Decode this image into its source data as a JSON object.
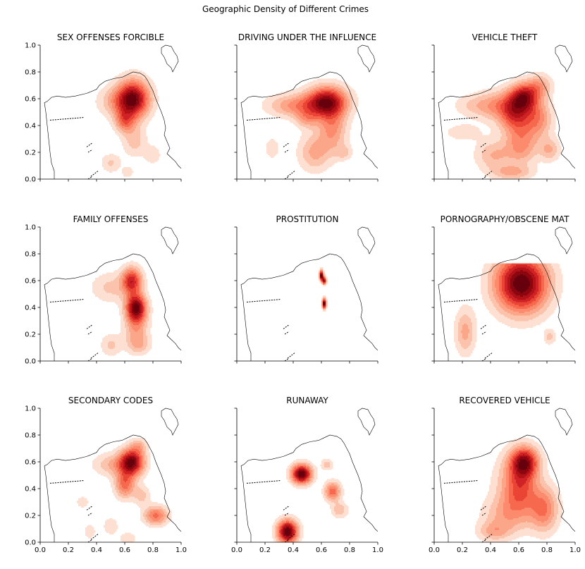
{
  "title": "Geographic Density of Different Crimes",
  "colors": {
    "palette": [
      "#fde0d2",
      "#fcc3ac",
      "#fca689",
      "#fb8b6c",
      "#f6694f",
      "#ea4534",
      "#cf2226",
      "#b01218",
      "#8c0610",
      "#67000d"
    ],
    "outline": "#000000"
  },
  "chart_data": {
    "type": "heatmap",
    "grid": {
      "rows": 3,
      "cols": 3
    },
    "xlim": [
      0,
      1
    ],
    "ylim": [
      0,
      1
    ],
    "xticks": [
      "0.0",
      "0.2",
      "0.4",
      "0.6",
      "0.8",
      "1.0"
    ],
    "yticks": [
      "0.0",
      "0.2",
      "0.4",
      "0.6",
      "0.8",
      "1.0"
    ],
    "panels": [
      {
        "title": "SEX OFFENSES FORCIBLE",
        "blobs": [
          [
            0.66,
            0.6,
            0.08,
            0.1,
            1.0
          ],
          [
            0.6,
            0.43,
            0.05,
            0.06,
            0.45
          ],
          [
            0.55,
            0.58,
            0.1,
            0.08,
            0.3
          ],
          [
            0.5,
            0.12,
            0.05,
            0.05,
            0.22
          ],
          [
            0.8,
            0.18,
            0.04,
            0.05,
            0.18
          ],
          [
            0.62,
            0.05,
            0.03,
            0.03,
            0.18
          ],
          [
            0.67,
            0.28,
            0.06,
            0.08,
            0.25
          ]
        ]
      },
      {
        "title": "DRIVING UNDER THE INFLUENCE",
        "blobs": [
          [
            0.64,
            0.58,
            0.1,
            0.08,
            1.0
          ],
          [
            0.42,
            0.55,
            0.14,
            0.06,
            0.45
          ],
          [
            0.68,
            0.38,
            0.07,
            0.12,
            0.45
          ],
          [
            0.55,
            0.2,
            0.08,
            0.1,
            0.35
          ],
          [
            0.76,
            0.2,
            0.04,
            0.04,
            0.22
          ],
          [
            0.25,
            0.23,
            0.04,
            0.06,
            0.18
          ],
          [
            0.5,
            0.45,
            0.06,
            0.05,
            0.3
          ]
        ]
      },
      {
        "title": "VEHICLE THEFT",
        "blobs": [
          [
            0.64,
            0.62,
            0.07,
            0.07,
            1.0
          ],
          [
            0.58,
            0.48,
            0.08,
            0.1,
            0.8
          ],
          [
            0.74,
            0.45,
            0.07,
            0.1,
            0.55
          ],
          [
            0.48,
            0.55,
            0.12,
            0.08,
            0.45
          ],
          [
            0.3,
            0.55,
            0.12,
            0.06,
            0.25
          ],
          [
            0.62,
            0.25,
            0.08,
            0.1,
            0.55
          ],
          [
            0.42,
            0.18,
            0.09,
            0.08,
            0.4
          ],
          [
            0.82,
            0.22,
            0.05,
            0.06,
            0.4
          ],
          [
            0.55,
            0.05,
            0.1,
            0.04,
            0.4
          ],
          [
            0.2,
            0.35,
            0.1,
            0.05,
            0.2
          ],
          [
            0.75,
            0.7,
            0.06,
            0.06,
            0.45
          ]
        ]
      },
      {
        "title": "FAMILY OFFENSES",
        "blobs": [
          [
            0.68,
            0.4,
            0.05,
            0.07,
            1.0
          ],
          [
            0.65,
            0.6,
            0.05,
            0.07,
            0.75
          ],
          [
            0.68,
            0.25,
            0.06,
            0.1,
            0.35
          ],
          [
            0.5,
            0.55,
            0.1,
            0.08,
            0.22
          ],
          [
            0.5,
            0.12,
            0.05,
            0.06,
            0.22
          ],
          [
            0.7,
            0.12,
            0.06,
            0.05,
            0.22
          ]
        ]
      },
      {
        "title": "PROSTITUTION",
        "blobs": [
          [
            0.6,
            0.64,
            0.01,
            0.025,
            1.0
          ],
          [
            0.62,
            0.6,
            0.01,
            0.02,
            0.8
          ],
          [
            0.62,
            0.43,
            0.01,
            0.025,
            1.0
          ]
        ]
      },
      {
        "title": "PORNOGRAPHY/OBSCENE MAT",
        "blobs": [
          [
            0.62,
            0.58,
            0.13,
            0.15,
            1.0
          ],
          [
            0.22,
            0.22,
            0.05,
            0.12,
            0.3
          ],
          [
            0.82,
            0.18,
            0.03,
            0.04,
            0.2
          ]
        ],
        "clipTop": 0.73
      },
      {
        "title": "SECONDARY CODES",
        "blobs": [
          [
            0.65,
            0.6,
            0.06,
            0.07,
            1.0
          ],
          [
            0.6,
            0.43,
            0.05,
            0.07,
            0.55
          ],
          [
            0.82,
            0.2,
            0.06,
            0.05,
            0.55
          ],
          [
            0.52,
            0.58,
            0.1,
            0.06,
            0.3
          ],
          [
            0.72,
            0.35,
            0.04,
            0.05,
            0.25
          ],
          [
            0.3,
            0.3,
            0.03,
            0.03,
            0.2
          ],
          [
            0.5,
            0.12,
            0.04,
            0.05,
            0.18
          ],
          [
            0.35,
            0.08,
            0.03,
            0.04,
            0.18
          ],
          [
            0.62,
            0.03,
            0.04,
            0.03,
            0.2
          ],
          [
            0.7,
            0.72,
            0.04,
            0.04,
            0.25
          ]
        ]
      },
      {
        "title": "RUNAWAY",
        "blobs": [
          [
            0.46,
            0.51,
            0.05,
            0.05,
            1.0
          ],
          [
            0.36,
            0.08,
            0.05,
            0.06,
            1.0
          ],
          [
            0.68,
            0.38,
            0.04,
            0.05,
            0.5
          ],
          [
            0.73,
            0.24,
            0.04,
            0.04,
            0.25
          ],
          [
            0.64,
            0.58,
            0.03,
            0.03,
            0.22
          ]
        ]
      },
      {
        "title": "RECOVERED VEHICLE",
        "blobs": [
          [
            0.64,
            0.6,
            0.07,
            0.08,
            1.0
          ],
          [
            0.62,
            0.4,
            0.08,
            0.12,
            0.5
          ],
          [
            0.78,
            0.25,
            0.07,
            0.12,
            0.55
          ],
          [
            0.52,
            0.2,
            0.12,
            0.1,
            0.35
          ],
          [
            0.42,
            0.08,
            0.08,
            0.05,
            0.3
          ],
          [
            0.55,
            0.45,
            0.1,
            0.15,
            0.25
          ]
        ]
      }
    ]
  }
}
